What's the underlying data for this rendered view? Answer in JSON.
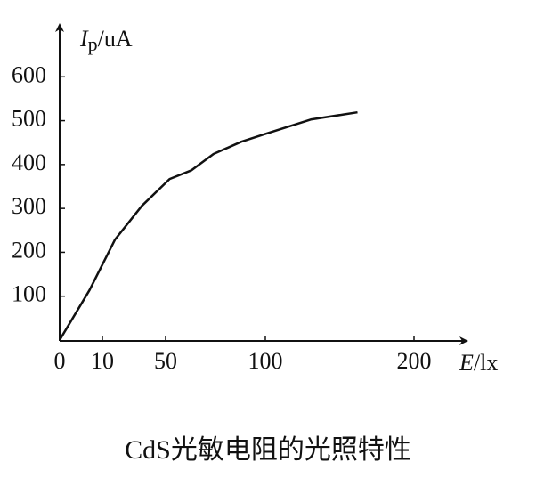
{
  "chart_data": {
    "type": "line",
    "caption": "CdS光敏电阻的光照特性",
    "y_label": {
      "symbol": "I",
      "subscript": "p",
      "unit": "/uA"
    },
    "x_label": {
      "symbol": "E",
      "unit": "/lx"
    },
    "x": [
      0,
      7,
      18,
      35,
      52,
      63,
      74,
      88,
      100,
      131,
      162
    ],
    "series": [
      {
        "color": "#111111",
        "values": [
          0,
          114,
          229,
          306,
          367,
          387,
          424,
          452,
          470,
          503,
          519
        ]
      }
    ],
    "xlim": [
      0,
      234
    ],
    "xticks": [
      0,
      10,
      50,
      100,
      200
    ],
    "ylim": [
      0,
      700
    ],
    "yticks": [
      100,
      200,
      300,
      400,
      500,
      600
    ],
    "grid": false
  }
}
